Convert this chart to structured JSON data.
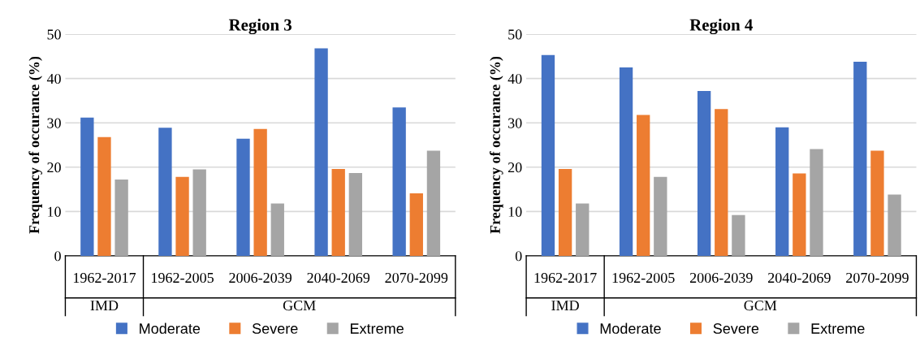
{
  "chart_data": [
    {
      "type": "bar",
      "title": "Region 3",
      "ylabel": "Frequency of occurance (%)",
      "categories": [
        "1962-2017",
        "1962-2005",
        "2006-2039",
        "2040-2069",
        "2070-2099"
      ],
      "annotations": [
        "IMD",
        "GCM"
      ],
      "ylim": [
        0,
        50
      ],
      "yticks": [
        0,
        10,
        20,
        30,
        40,
        50
      ],
      "grid": "y",
      "legend": "bottom",
      "series": [
        {
          "name": "Moderate",
          "color": "#4472c4",
          "values": [
            31.2,
            28.9,
            26.4,
            46.8,
            33.5
          ]
        },
        {
          "name": "Severe",
          "color": "#ed7d31",
          "values": [
            26.8,
            17.8,
            28.6,
            19.6,
            14.1
          ]
        },
        {
          "name": "Extreme",
          "color": "#a5a5a5",
          "values": [
            17.2,
            19.5,
            11.8,
            18.7,
            23.7
          ]
        }
      ]
    },
    {
      "type": "bar",
      "title": "Region 4",
      "ylabel": "Frequency of occurance (%)",
      "categories": [
        "1962-2017",
        "1962-2005",
        "2006-2039",
        "2040-2069",
        "2070-2099"
      ],
      "annotations": [
        "IMD",
        "GCM"
      ],
      "ylim": [
        0,
        50
      ],
      "yticks": [
        0,
        10,
        20,
        30,
        40,
        50
      ],
      "grid": "y",
      "legend": "bottom",
      "series": [
        {
          "name": "Moderate",
          "color": "#4472c4",
          "values": [
            45.3,
            42.5,
            37.2,
            29.0,
            43.8
          ]
        },
        {
          "name": "Severe",
          "color": "#ed7d31",
          "values": [
            19.6,
            31.8,
            33.1,
            18.6,
            23.7
          ]
        },
        {
          "name": "Extreme",
          "color": "#a5a5a5",
          "values": [
            11.8,
            17.8,
            9.2,
            24.1,
            13.8
          ]
        }
      ]
    }
  ]
}
